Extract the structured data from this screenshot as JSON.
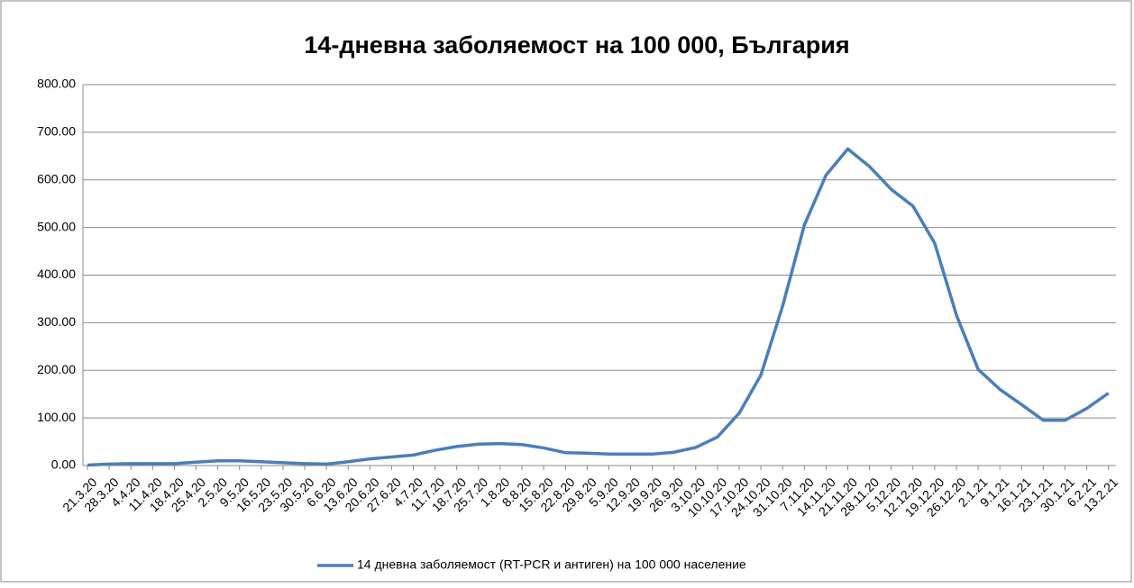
{
  "chart_data": {
    "type": "line",
    "title": "14-дневна заболяемост на 100 000, България",
    "categories": [
      "21.3.20",
      "28.3.20",
      "4.4.20",
      "11.4.20",
      "18.4.20",
      "25.4.20",
      "2.5.20",
      "9.5.20",
      "16.5.20",
      "23.5.20",
      "30.5.20",
      "6.6.20",
      "13.6.20",
      "20.6.20",
      "27.6.20",
      "4.7.20",
      "11.7.20",
      "18.7.20",
      "25.7.20",
      "1.8.20",
      "8.8.20",
      "15.8.20",
      "22.8.20",
      "29.8.20",
      "5.9.20",
      "12.9.20",
      "19.9.20",
      "26.9.20",
      "3.10.20",
      "10.10.20",
      "17.10.20",
      "24.10.20",
      "31.10.20",
      "7.11.20",
      "14.11.20",
      "21.11.20",
      "28.11.20",
      "5.12.20",
      "12.12.20",
      "19.12.20",
      "26.12.20",
      "2.1.21",
      "9.1.21",
      "16.1.21",
      "23.1.21",
      "30.1.21",
      "6.2.21",
      "13.2.21"
    ],
    "series": [
      {
        "name": "14 дневна заболяемост (RT-PCR и антиген) на 100 000 население",
        "color": "#4a7ebb",
        "values": [
          1,
          3,
          4,
          4,
          4,
          7,
          10,
          10,
          8,
          6,
          4,
          3,
          8,
          14,
          18,
          22,
          32,
          40,
          45,
          46,
          44,
          37,
          27,
          26,
          24,
          24,
          24,
          28,
          38,
          60,
          110,
          190,
          335,
          505,
          610,
          665,
          628,
          580,
          545,
          467,
          316,
          202,
          160,
          128,
          95,
          95,
          120,
          152
        ]
      }
    ],
    "ylim": [
      0,
      800
    ],
    "yticks": [
      {
        "value": 0,
        "label": "0.00"
      },
      {
        "value": 100,
        "label": "100.00"
      },
      {
        "value": 200,
        "label": "200.00"
      },
      {
        "value": 300,
        "label": "300.00"
      },
      {
        "value": 400,
        "label": "400.00"
      },
      {
        "value": 500,
        "label": "500.00"
      },
      {
        "value": 600,
        "label": "600.00"
      },
      {
        "value": 700,
        "label": "700.00"
      },
      {
        "value": 800,
        "label": "800.00"
      }
    ],
    "grid": true,
    "legend": "bottom"
  }
}
